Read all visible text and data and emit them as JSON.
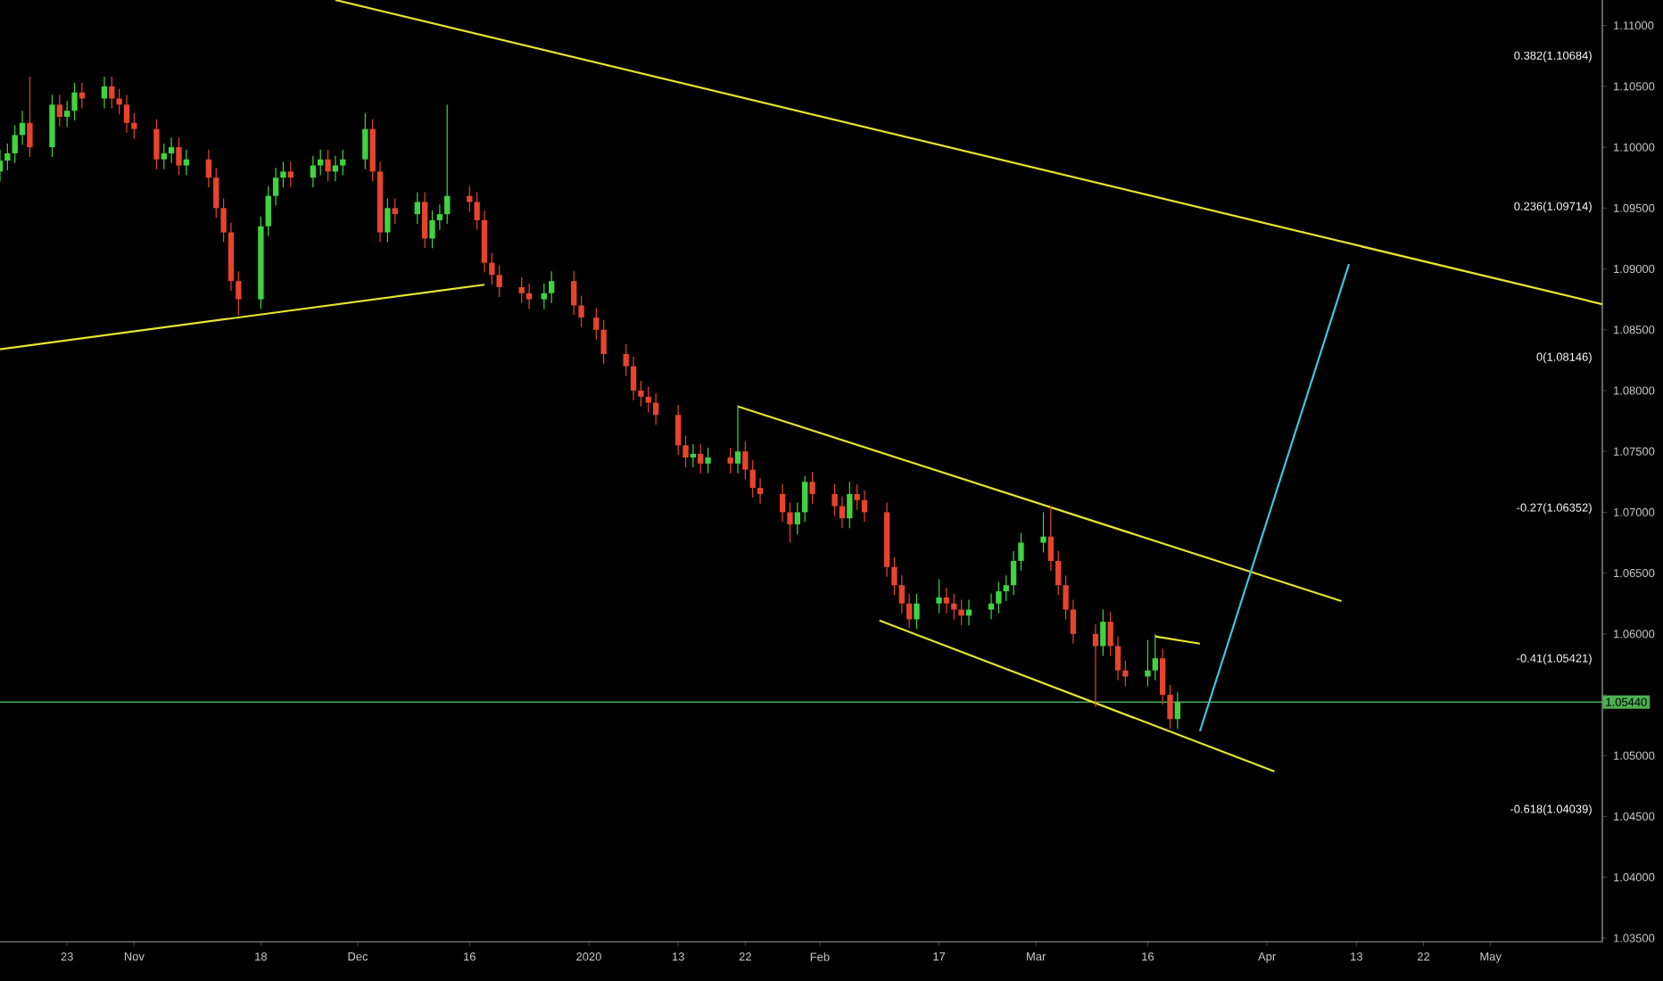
{
  "chart_data": {
    "type": "candlestick",
    "x": [
      "2019-10-14",
      "2019-10-15",
      "2019-10-16",
      "2019-10-17",
      "2019-10-18",
      "2019-10-21",
      "2019-10-22",
      "2019-10-23",
      "2019-10-24",
      "2019-10-25",
      "2019-10-28",
      "2019-10-29",
      "2019-10-30",
      "2019-10-31",
      "2019-11-01",
      "2019-11-04",
      "2019-11-05",
      "2019-11-06",
      "2019-11-07",
      "2019-11-08",
      "2019-11-11",
      "2019-11-12",
      "2019-11-13",
      "2019-11-14",
      "2019-11-15",
      "2019-11-18",
      "2019-11-19",
      "2019-11-20",
      "2019-11-21",
      "2019-11-22",
      "2019-11-25",
      "2019-11-26",
      "2019-11-27",
      "2019-11-28",
      "2019-11-29",
      "2019-12-02",
      "2019-12-03",
      "2019-12-04",
      "2019-12-05",
      "2019-12-06",
      "2019-12-09",
      "2019-12-10",
      "2019-12-11",
      "2019-12-12",
      "2019-12-13",
      "2019-12-16",
      "2019-12-17",
      "2019-12-18",
      "2019-12-19",
      "2019-12-20",
      "2019-12-23",
      "2019-12-24",
      "2019-12-26",
      "2019-12-27",
      "2019-12-30",
      "2019-12-31",
      "2020-01-02",
      "2020-01-03",
      "2020-01-06",
      "2020-01-07",
      "2020-01-08",
      "2020-01-09",
      "2020-01-10",
      "2020-01-13",
      "2020-01-14",
      "2020-01-15",
      "2020-01-16",
      "2020-01-17",
      "2020-01-20",
      "2020-01-21",
      "2020-01-22",
      "2020-01-23",
      "2020-01-24",
      "2020-01-27",
      "2020-01-28",
      "2020-01-29",
      "2020-01-30",
      "2020-01-31",
      "2020-02-03",
      "2020-02-04",
      "2020-02-05",
      "2020-02-06",
      "2020-02-07",
      "2020-02-10",
      "2020-02-11",
      "2020-02-12",
      "2020-02-13",
      "2020-02-14",
      "2020-02-17",
      "2020-02-18",
      "2020-02-19",
      "2020-02-20",
      "2020-02-21",
      "2020-02-24",
      "2020-02-25",
      "2020-02-26",
      "2020-02-27",
      "2020-02-28",
      "2020-03-02",
      "2020-03-03",
      "2020-03-04",
      "2020-03-05",
      "2020-03-06",
      "2020-03-09",
      "2020-03-10",
      "2020-03-11",
      "2020-03-12",
      "2020-03-13",
      "2020-03-16",
      "2020-03-17",
      "2020-03-18",
      "2020-03-19",
      "2020-03-20"
    ],
    "ohlc": [
      [
        1.098,
        1.0998,
        1.0972,
        1.0989
      ],
      [
        1.0989,
        1.1003,
        1.0981,
        1.0995
      ],
      [
        1.0995,
        1.1018,
        1.0987,
        1.101
      ],
      [
        1.101,
        1.103,
        1.1002,
        1.102
      ],
      [
        1.102,
        1.1058,
        1.0992,
        1.1
      ],
      [
        1.1,
        1.1043,
        1.0992,
        1.1035
      ],
      [
        1.1035,
        1.1043,
        1.1017,
        1.1025
      ],
      [
        1.1025,
        1.1038,
        1.1017,
        1.103
      ],
      [
        1.103,
        1.1053,
        1.1022,
        1.1045
      ],
      [
        1.1045,
        1.1053,
        1.1032,
        1.104
      ],
      [
        1.104,
        1.1058,
        1.1032,
        1.105
      ],
      [
        1.105,
        1.1058,
        1.1032,
        1.104
      ],
      [
        1.104,
        1.1048,
        1.1027,
        1.1035
      ],
      [
        1.1035,
        1.1043,
        1.1012,
        1.102
      ],
      [
        1.102,
        1.1028,
        1.1007,
        1.1015
      ],
      [
        1.1015,
        1.1023,
        1.0982,
        1.099
      ],
      [
        1.099,
        1.1003,
        1.0982,
        1.0995
      ],
      [
        1.0995,
        1.1008,
        1.0987,
        1.1
      ],
      [
        1.1,
        1.1008,
        1.0977,
        1.0985
      ],
      [
        1.0985,
        1.0998,
        1.0977,
        1.099
      ],
      [
        1.099,
        1.0998,
        1.0967,
        1.0975
      ],
      [
        1.0975,
        1.0983,
        1.0942,
        1.095
      ],
      [
        1.095,
        1.0958,
        1.0922,
        1.093
      ],
      [
        1.093,
        1.0938,
        1.0882,
        1.089
      ],
      [
        1.089,
        1.0898,
        1.0862,
        1.0875
      ],
      [
        1.0875,
        1.0943,
        1.0867,
        1.0935
      ],
      [
        1.0935,
        1.0968,
        1.0927,
        1.096
      ],
      [
        1.096,
        1.0983,
        1.0952,
        1.0975
      ],
      [
        1.0975,
        1.0988,
        1.0967,
        1.098
      ],
      [
        1.098,
        1.0988,
        1.0967,
        1.0975
      ],
      [
        1.0975,
        1.0993,
        1.0967,
        1.0985
      ],
      [
        1.0985,
        1.0998,
        1.0977,
        1.099
      ],
      [
        1.099,
        1.0998,
        1.0972,
        1.098
      ],
      [
        1.098,
        1.0993,
        1.0972,
        1.0985
      ],
      [
        1.0985,
        1.0998,
        1.0977,
        1.099
      ],
      [
        1.099,
        1.1028,
        1.0982,
        1.1015
      ],
      [
        1.1015,
        1.1023,
        1.0972,
        1.098
      ],
      [
        1.098,
        1.0988,
        1.0922,
        1.093
      ],
      [
        1.093,
        1.0958,
        1.0922,
        1.095
      ],
      [
        1.095,
        1.0958,
        1.0937,
        1.0945
      ],
      [
        1.0945,
        1.0963,
        1.0937,
        1.0955
      ],
      [
        1.0955,
        1.0963,
        1.0917,
        1.0925
      ],
      [
        1.0925,
        1.0948,
        1.0917,
        1.094
      ],
      [
        1.094,
        1.0953,
        1.0932,
        1.0945
      ],
      [
        1.0945,
        1.1035,
        1.0937,
        1.096
      ],
      [
        1.096,
        1.0968,
        1.0947,
        1.0955
      ],
      [
        1.0955,
        1.0963,
        1.0932,
        1.094
      ],
      [
        1.094,
        1.0948,
        1.0897,
        1.0905
      ],
      [
        1.0905,
        1.0913,
        1.0887,
        1.0895
      ],
      [
        1.0895,
        1.0903,
        1.0877,
        1.0885
      ],
      [
        1.0885,
        1.0893,
        1.0872,
        1.088
      ],
      [
        1.088,
        1.0888,
        1.0867,
        1.0875
      ],
      [
        1.0875,
        1.0888,
        1.0867,
        1.088
      ],
      [
        1.088,
        1.0898,
        1.0872,
        1.089
      ],
      [
        1.089,
        1.0898,
        1.0862,
        1.087
      ],
      [
        1.087,
        1.0878,
        1.0852,
        1.086
      ],
      [
        1.086,
        1.0868,
        1.0842,
        1.085
      ],
      [
        1.085,
        1.0858,
        1.0822,
        1.083
      ],
      [
        1.083,
        1.0838,
        1.0812,
        1.082
      ],
      [
        1.082,
        1.0828,
        1.0792,
        1.08
      ],
      [
        1.08,
        1.0808,
        1.0787,
        1.0795
      ],
      [
        1.0795,
        1.0803,
        1.0782,
        1.079
      ],
      [
        1.079,
        1.0798,
        1.0772,
        1.078
      ],
      [
        1.078,
        1.0788,
        1.0747,
        1.0755
      ],
      [
        1.0755,
        1.0763,
        1.0737,
        1.0745
      ],
      [
        1.0745,
        1.0756,
        1.0737,
        1.0748
      ],
      [
        1.0748,
        1.0756,
        1.0732,
        1.074
      ],
      [
        1.074,
        1.0753,
        1.0732,
        1.0745
      ],
      [
        1.0745,
        1.0753,
        1.0732,
        1.074
      ],
      [
        1.074,
        1.0788,
        1.0732,
        1.075
      ],
      [
        1.075,
        1.0758,
        1.0727,
        1.0735
      ],
      [
        1.0735,
        1.0743,
        1.0712,
        1.072
      ],
      [
        1.072,
        1.0728,
        1.0707,
        1.0715
      ],
      [
        1.0715,
        1.0723,
        1.0692,
        1.07
      ],
      [
        1.07,
        1.0708,
        1.0675,
        1.069
      ],
      [
        1.069,
        1.0708,
        1.0682,
        1.07
      ],
      [
        1.07,
        1.073,
        1.0692,
        1.0725
      ],
      [
        1.0725,
        1.0733,
        1.0707,
        1.0715
      ],
      [
        1.0715,
        1.0723,
        1.0697,
        1.0705
      ],
      [
        1.0705,
        1.0713,
        1.0687,
        1.0695
      ],
      [
        1.0695,
        1.0725,
        1.0687,
        1.0715
      ],
      [
        1.0715,
        1.0723,
        1.0702,
        1.071
      ],
      [
        1.071,
        1.0718,
        1.0692,
        1.07
      ],
      [
        1.07,
        1.0708,
        1.0647,
        1.0655
      ],
      [
        1.0655,
        1.0663,
        1.0632,
        1.064
      ],
      [
        1.064,
        1.0648,
        1.0617,
        1.0625
      ],
      [
        1.0625,
        1.0633,
        1.0605,
        1.0612
      ],
      [
        1.0612,
        1.0633,
        1.0604,
        1.0625
      ],
      [
        1.0625,
        1.0645,
        1.0617,
        1.063
      ],
      [
        1.063,
        1.0638,
        1.0617,
        1.0625
      ],
      [
        1.0625,
        1.0633,
        1.0612,
        1.062
      ],
      [
        1.062,
        1.0628,
        1.0607,
        1.0615
      ],
      [
        1.0615,
        1.0628,
        1.0607,
        1.062
      ],
      [
        1.062,
        1.0633,
        1.0612,
        1.0625
      ],
      [
        1.0625,
        1.0643,
        1.0617,
        1.0635
      ],
      [
        1.0635,
        1.0648,
        1.0627,
        1.064
      ],
      [
        1.064,
        1.0668,
        1.0632,
        1.066
      ],
      [
        1.066,
        1.0683,
        1.0652,
        1.0675
      ],
      [
        1.0675,
        1.07,
        1.0667,
        1.068
      ],
      [
        1.068,
        1.0705,
        1.0652,
        1.066
      ],
      [
        1.066,
        1.0668,
        1.0632,
        1.064
      ],
      [
        1.064,
        1.0648,
        1.0612,
        1.062
      ],
      [
        1.062,
        1.0628,
        1.0592,
        1.06
      ],
      [
        1.06,
        1.0608,
        1.054,
        1.059
      ],
      [
        1.059,
        1.062,
        1.0582,
        1.061
      ],
      [
        1.061,
        1.0618,
        1.0582,
        1.059
      ],
      [
        1.059,
        1.0598,
        1.0562,
        1.057
      ],
      [
        1.057,
        1.0578,
        1.0557,
        1.0565
      ],
      [
        1.0565,
        1.0595,
        1.0557,
        1.057
      ],
      [
        1.057,
        1.06,
        1.0562,
        1.058
      ],
      [
        1.058,
        1.0588,
        1.0542,
        1.055
      ],
      [
        1.055,
        1.0558,
        1.0522,
        1.053
      ],
      [
        1.053,
        1.0552,
        1.0522,
        1.0544
      ]
    ],
    "colors": [
      "#3fd43f",
      "#3fd43f",
      "#3fd43f",
      "#3fd43f",
      "#e8432c",
      "#3fd43f",
      "#e8432c",
      "#3fd43f",
      "#3fd43f",
      "#e8432c",
      "#3fd43f",
      "#e8432c",
      "#e8432c",
      "#e8432c",
      "#e8432c",
      "#e8432c",
      "#3fd43f",
      "#3fd43f",
      "#e8432c",
      "#3fd43f",
      "#e8432c",
      "#e8432c",
      "#e8432c",
      "#e8432c",
      "#e8432c",
      "#3fd43f",
      "#3fd43f",
      "#3fd43f",
      "#3fd43f",
      "#e8432c",
      "#3fd43f",
      "#3fd43f",
      "#e8432c",
      "#3fd43f",
      "#3fd43f",
      "#3fd43f",
      "#e8432c",
      "#e8432c",
      "#3fd43f",
      "#e8432c",
      "#3fd43f",
      "#e8432c",
      "#3fd43f",
      "#3fd43f",
      "#3fd43f",
      "#e8432c",
      "#e8432c",
      "#e8432c",
      "#e8432c",
      "#e8432c",
      "#e8432c",
      "#e8432c",
      "#3fd43f",
      "#3fd43f",
      "#e8432c",
      "#e8432c",
      "#e8432c",
      "#e8432c",
      "#e8432c",
      "#e8432c",
      "#e8432c",
      "#e8432c",
      "#e8432c",
      "#e8432c",
      "#e8432c",
      "#3fd43f",
      "#e8432c",
      "#3fd43f",
      "#e8432c",
      "#3fd43f",
      "#e8432c",
      "#e8432c",
      "#e8432c",
      "#e8432c",
      "#e8432c",
      "#3fd43f",
      "#3fd43f",
      "#e8432c",
      "#e8432c",
      "#e8432c",
      "#3fd43f",
      "#e8432c",
      "#e8432c",
      "#e8432c",
      "#e8432c",
      "#e8432c",
      "#e8432c",
      "#3fd43f",
      "#3fd43f",
      "#e8432c",
      "#e8432c",
      "#e8432c",
      "#3fd43f",
      "#3fd43f",
      "#3fd43f",
      "#3fd43f",
      "#3fd43f",
      "#3fd43f",
      "#3fd43f",
      "#e8432c",
      "#e8432c",
      "#e8432c",
      "#e8432c",
      "#e8432c",
      "#3fd43f",
      "#e8432c",
      "#e8432c",
      "#e8432c",
      "#3fd43f",
      "#3fd43f",
      "#e8432c",
      "#e8432c",
      "#3fd43f"
    ],
    "series": [
      {
        "type": "line",
        "color": "#e6e62e",
        "x": [
          "2019-11-28",
          "2020-05-16"
        ],
        "values": [
          1.1121,
          1.0871
        ]
      },
      {
        "type": "line",
        "color": "#e6e62e",
        "x": [
          "2019-10-14",
          "2019-12-18"
        ],
        "values": [
          1.0834,
          1.0887
        ]
      },
      {
        "type": "line",
        "color": "#e6e62e",
        "x": [
          "2020-01-21",
          "2020-04-11"
        ],
        "values": [
          1.0787,
          1.0627
        ]
      },
      {
        "type": "line",
        "color": "#e6e62e",
        "x": [
          "2020-02-09",
          "2020-04-02"
        ],
        "values": [
          1.0611,
          1.0487
        ]
      },
      {
        "type": "line",
        "color": "#e6e62e",
        "x": [
          "2020-03-17",
          "2020-03-23"
        ],
        "values": [
          1.0598,
          1.0592
        ]
      },
      {
        "type": "line",
        "color": "#40c4e0",
        "x": [
          "2020-03-23",
          "2020-04-12"
        ],
        "values": [
          1.052,
          1.0904
        ]
      }
    ],
    "ref_lines": [
      {
        "axis": "y",
        "value": 1.0544,
        "label": "1.05440",
        "color": "#4caf50"
      }
    ],
    "annotations": [
      "0.382(1.10684)",
      "0.236(1.09714)",
      "0(1.08146)",
      "-0.27(1.06352)",
      "-0.41(1.05421)",
      "-0.618(1.04039)"
    ],
    "xlim": [
      "2019-10-14",
      "2020-05-16"
    ],
    "xticks": [
      {
        "value": "2019-10-23",
        "label": "23"
      },
      {
        "value": "2019-11-01",
        "label": "Nov"
      },
      {
        "value": "2019-11-18",
        "label": "18"
      },
      {
        "value": "2019-12-01",
        "label": "Dec"
      },
      {
        "value": "2019-12-16",
        "label": "16"
      },
      {
        "value": "2020-01-01",
        "label": "2020"
      },
      {
        "value": "2020-01-13",
        "label": "13"
      },
      {
        "value": "2020-01-22",
        "label": "22"
      },
      {
        "value": "2020-02-01",
        "label": "Feb"
      },
      {
        "value": "2020-02-17",
        "label": "17"
      },
      {
        "value": "2020-03-01",
        "label": "Mar"
      },
      {
        "value": "2020-03-16",
        "label": "16"
      },
      {
        "value": "2020-04-01",
        "label": "Apr"
      },
      {
        "value": "2020-04-13",
        "label": "13"
      },
      {
        "value": "2020-04-22",
        "label": "22"
      },
      {
        "value": "2020-05-01",
        "label": "May"
      }
    ],
    "ylim": [
      1.0347,
      1.1121
    ],
    "yticks": [
      {
        "value": 1.035,
        "label": "1.03500"
      },
      {
        "value": 1.04,
        "label": "1.04000"
      },
      {
        "value": 1.045,
        "label": "1.04500"
      },
      {
        "value": 1.05,
        "label": "1.05000"
      },
      {
        "value": 1.055,
        "label": null
      },
      {
        "value": 1.06,
        "label": "1.06000"
      },
      {
        "value": 1.065,
        "label": "1.06500"
      },
      {
        "value": 1.07,
        "label": "1.07000"
      },
      {
        "value": 1.075,
        "label": "1.07500"
      },
      {
        "value": 1.08,
        "label": "1.08000"
      },
      {
        "value": 1.085,
        "label": "1.08500"
      },
      {
        "value": 1.09,
        "label": "1.09000"
      },
      {
        "value": 1.095,
        "label": "1.09500"
      },
      {
        "value": 1.1,
        "label": "1.10000"
      },
      {
        "value": 1.105,
        "label": "1.10500"
      },
      {
        "value": 1.11,
        "label": "1.11000"
      }
    ],
    "grid": false
  }
}
